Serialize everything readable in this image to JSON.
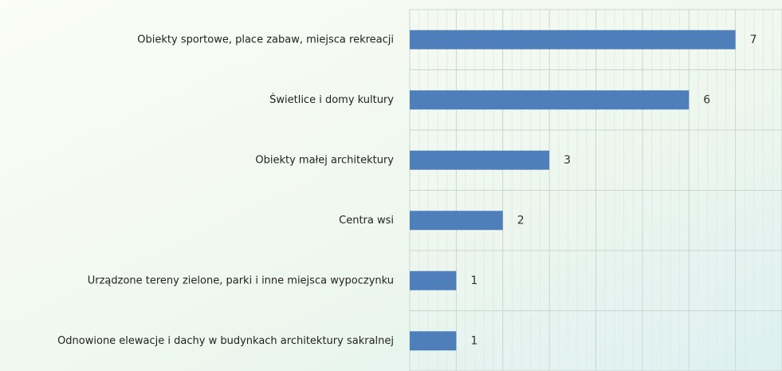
{
  "chart_data": {
    "type": "bar",
    "orientation": "horizontal",
    "categories": [
      "Obiekty sportowe, place zabaw, miejsca rekreacji",
      "Świetlice i domy kultury",
      "Obiekty małej architektury",
      "Centra wsi",
      "Urządzone tereny zielone, parki i inne miejsca wypoczynku",
      "Odnowione elewacje i dachy w budynkach architektury sakralnej"
    ],
    "values": [
      7,
      6,
      3,
      2,
      1,
      1
    ],
    "color": "#4f7fba",
    "xlim": [
      0,
      8
    ],
    "xticks": [
      0,
      1,
      2,
      3,
      4,
      5,
      6,
      7,
      8
    ],
    "grid": true
  }
}
